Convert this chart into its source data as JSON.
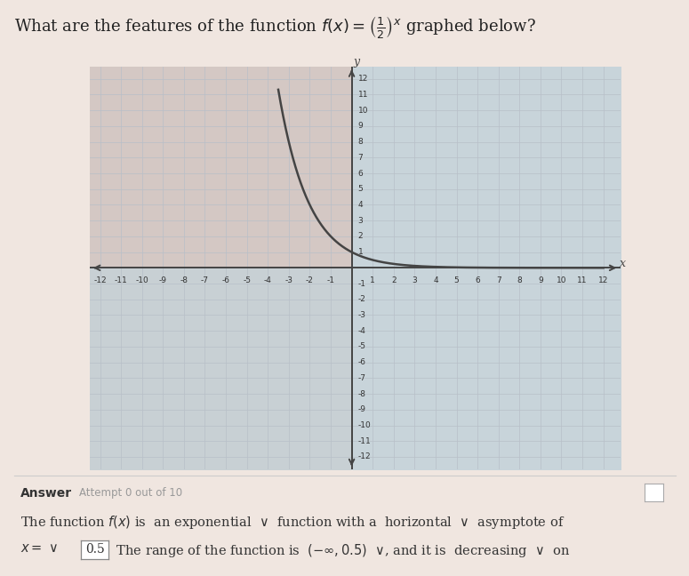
{
  "xlim": [
    -12,
    12
  ],
  "ylim": [
    -12,
    12
  ],
  "grid_color": "#b8bfc8",
  "grid_linewidth": 0.5,
  "axis_color": "#444444",
  "curve_color": "#444444",
  "fig_bg_color": "#f0e6e0",
  "plot_bg_upper_left": "#d8cec8",
  "plot_bg_upper_right": "#cdd8de",
  "plot_bg_lower_left": "#cdd4d8",
  "plot_bg_lower_right": "#cdd8de",
  "curve_linewidth": 1.8,
  "base": 0.5,
  "tick_fontsize": 6.5,
  "title_fontsize": 13
}
